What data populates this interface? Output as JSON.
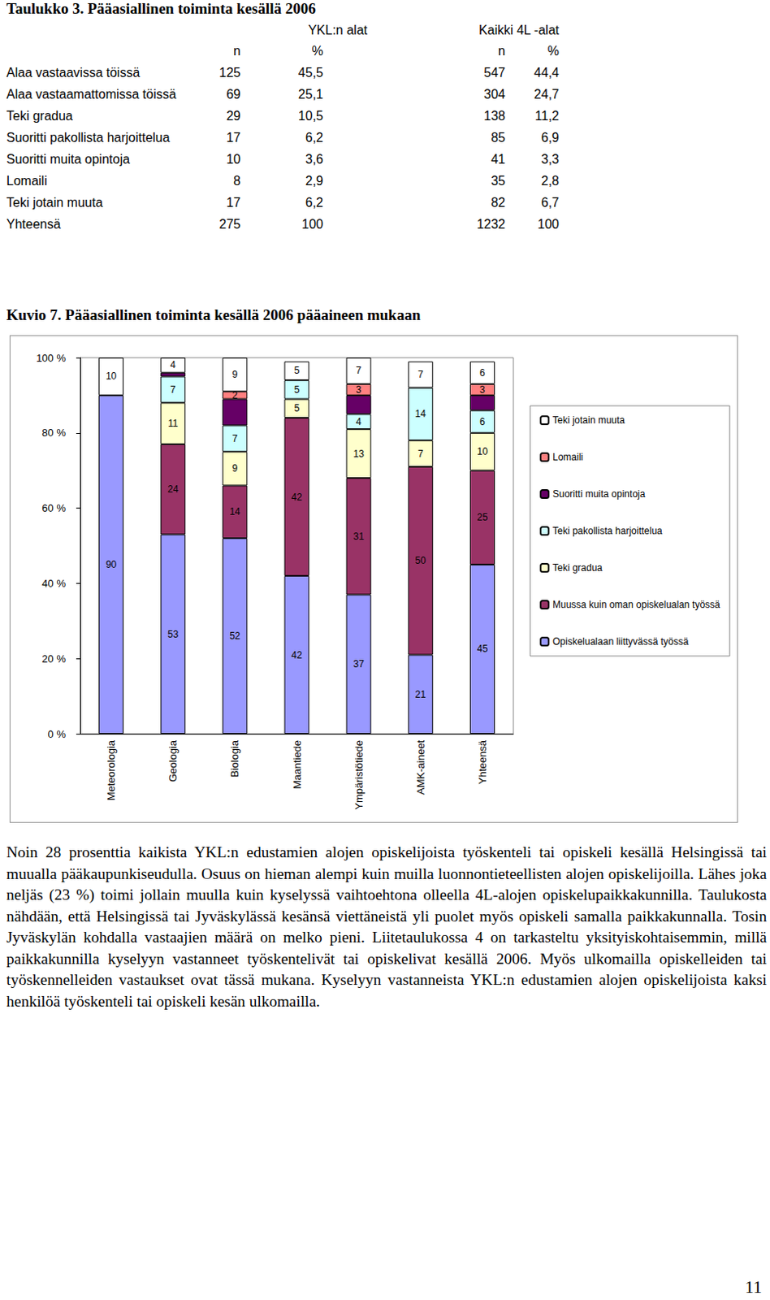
{
  "table": {
    "title": "Taulukko 3. Pääasiallinen toiminta kesällä 2006",
    "groups": [
      "YKL:n alat",
      "Kaikki 4L -alat"
    ],
    "columns": [
      "n",
      "%",
      "n",
      "%"
    ],
    "rows": [
      [
        "Alaa vastaavissa töissä",
        "125",
        "45,5",
        "547",
        "44,4"
      ],
      [
        "Alaa vastaamattomissa töissä",
        "69",
        "25,1",
        "304",
        "24,7"
      ],
      [
        "Teki gradua",
        "29",
        "10,5",
        "138",
        "11,2"
      ],
      [
        "Suoritti pakollista harjoittelua",
        "17",
        "6,2",
        "85",
        "6,9"
      ],
      [
        "Suoritti muita opintoja",
        "10",
        "3,6",
        "41",
        "3,3"
      ],
      [
        "Lomaili",
        "8",
        "2,9",
        "35",
        "2,8"
      ],
      [
        "Teki jotain muuta",
        "17",
        "6,2",
        "82",
        "6,7"
      ],
      [
        "Yhteensä",
        "275",
        "100",
        "1232",
        "100"
      ]
    ]
  },
  "chart_data": {
    "type": "bar",
    "title": "Kuvio 7. Pääasiallinen toiminta kesällä 2006 pääaineen mukaan",
    "categories": [
      "Meteorologia",
      "Geologia",
      "Biologia",
      "Maantiede",
      "Ympäristötiede",
      "AMK-aineet",
      "Yhteensä"
    ],
    "stacked": true,
    "data_labels": true,
    "grid": false,
    "legend": "right",
    "ylim": [
      0,
      100
    ],
    "yticks": [
      {
        "value": 0,
        "label": "0 %"
      },
      {
        "value": 20,
        "label": "20 %"
      },
      {
        "value": 40,
        "label": "40 %"
      },
      {
        "value": 60,
        "label": "60 %"
      },
      {
        "value": 80,
        "label": "80 %"
      },
      {
        "value": 100,
        "label": "100 %"
      }
    ],
    "series": [
      {
        "name": "Opiskelualaan liittyvässä työssä",
        "color": "#9999FF",
        "values": [
          90,
          53,
          52,
          42,
          37,
          21,
          45
        ]
      },
      {
        "name": "Muussa kuin oman opiskelualan työssä",
        "color": "#993366",
        "values": [
          null,
          24,
          14,
          42,
          31,
          50,
          25
        ]
      },
      {
        "name": "Teki gradua",
        "color": "#FFFFCC",
        "values": [
          null,
          11,
          9,
          5,
          13,
          7,
          10
        ]
      },
      {
        "name": "Teki pakollista harjoittelua",
        "color": "#CCFFFF",
        "values": [
          null,
          7,
          7,
          5,
          4,
          14,
          6
        ]
      },
      {
        "name": "Suoritti muita opintoja",
        "color": "#660066",
        "values": [
          null,
          1,
          7,
          null,
          5,
          null,
          4
        ],
        "value_labels": [
          null,
          null,
          null,
          null,
          null,
          null,
          null
        ]
      },
      {
        "name": "Lomaili",
        "color": "#FF8080",
        "values": [
          null,
          null,
          2,
          null,
          3,
          null,
          3
        ]
      },
      {
        "name": "Teki jotain muuta",
        "color": "#FFFFFF",
        "values": [
          10,
          4,
          9,
          5,
          7,
          7,
          6
        ]
      }
    ]
  },
  "paragraph": "Noin 28 prosenttia kaikista YKL:n edustamien alojen opiskelijoista työskenteli tai opiskeli kesällä Helsingissä tai muualla pääkaupunkiseudulla. Osuus on hieman alempi kuin muilla luonnontieteellisten alojen opiskelijoilla. Lähes joka neljäs (23 %) toimi jollain muulla kuin kyselyssä vaihtoehtona olleella 4L-alojen opiskelupaikkakunnilla. Taulukosta nähdään, että Helsingissä tai Jyväskylässä kesänsä viettäneistä yli puolet myös opiskeli samalla paikkakunnalla. Tosin Jyväskylän kohdalla vastaajien määrä on melko pieni. Liitetaulukossa 4 on tarkasteltu yksityiskohtaisemmin, millä paikkakunnilla kyselyyn vastanneet työskentelivät tai opiskelivat kesällä 2006. Myös ulkomailla opiskelleiden tai työskennelleiden vastaukset ovat tässä mukana. Kyselyyn vastanneista YKL:n edustamien alojen opiskelijoista kaksi henkilöä työskenteli tai opiskeli kesän ulkomailla.",
  "page_number": "11"
}
